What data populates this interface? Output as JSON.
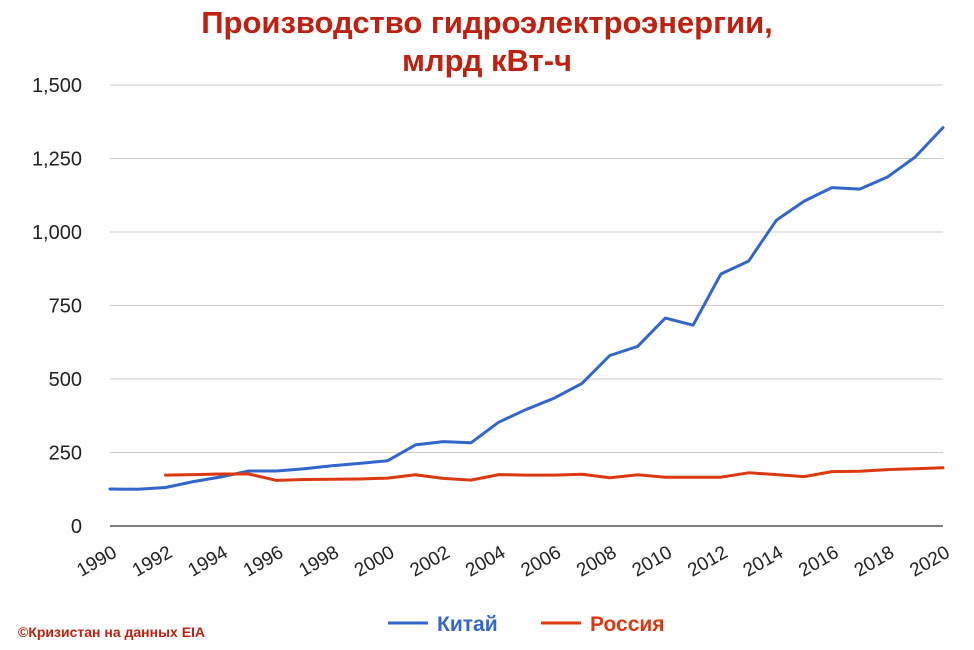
{
  "chart_data": {
    "type": "line",
    "title_lines": [
      "Производство гидроэлектроэнергии,",
      "млрд кВт-ч"
    ],
    "xlabel": "",
    "ylabel": "",
    "x": [
      1990,
      1991,
      1992,
      1993,
      1994,
      1995,
      1996,
      1997,
      1998,
      1999,
      2000,
      2001,
      2002,
      2003,
      2004,
      2005,
      2006,
      2007,
      2008,
      2009,
      2010,
      2011,
      2012,
      2013,
      2014,
      2015,
      2016,
      2017,
      2018,
      2019,
      2020
    ],
    "x_tick_labels": [
      "1990",
      "1992",
      "1994",
      "1996",
      "1998",
      "2000",
      "2002",
      "2004",
      "2006",
      "2008",
      "2010",
      "2012",
      "2014",
      "2016",
      "2018",
      "2020"
    ],
    "y_tick_labels": [
      "0",
      "250",
      "500",
      "750",
      "1,000",
      "1,250",
      "1,500"
    ],
    "y_ticks": [
      0,
      250,
      500,
      750,
      1000,
      1250,
      1500
    ],
    "ylim": [
      0,
      1500
    ],
    "xlim": [
      1990,
      2020
    ],
    "grid": true,
    "legend_position": "bottom",
    "series": [
      {
        "name": "Китай",
        "color": "#3366cc",
        "values": [
          126,
          125,
          131,
          151,
          167,
          187,
          187,
          195,
          205,
          213,
          222,
          276,
          287,
          283,
          353,
          397,
          435,
          485,
          580,
          611,
          707,
          683,
          857,
          901,
          1040,
          1105,
          1151,
          1146,
          1187,
          1255,
          1355
        ]
      },
      {
        "name": "Россия",
        "color": "#dc3912",
        "values": [
          null,
          null,
          173,
          175,
          177,
          177,
          155,
          158,
          159,
          160,
          163,
          174,
          162,
          156,
          175,
          173,
          173,
          176,
          164,
          174,
          166,
          166,
          166,
          181,
          175,
          168,
          185,
          186,
          192,
          195,
          198
        ]
      }
    ]
  },
  "source_note": "©Кризистан на данных EIA"
}
